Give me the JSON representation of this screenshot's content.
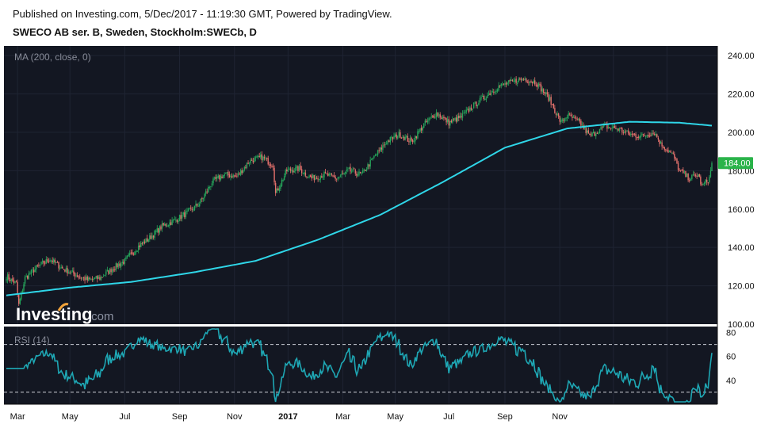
{
  "header": {
    "published": "Published on Investing.com, 5/Dec/2017 - 11:19:30 GMT, Powered by TradingView.",
    "symbol": "SWECO AB ser. B, Sweden, Stockholm:SWECb, D"
  },
  "watermark": {
    "brand": "Investing",
    "suffix": ".com"
  },
  "colors": {
    "background": "#131722",
    "grid": "#1f2433",
    "up": "#26a65b",
    "down": "#e5716c",
    "ma": "#2fd6e8",
    "rsi": "#1ea7b4",
    "price_tag": "#2ab34a"
  },
  "chart_data": [
    {
      "type": "candlestick",
      "title": "SWECO AB ser. B, Sweden, Stockholm:SWECb, D",
      "indicator_label": "MA (200, close, 0)",
      "ylim": [
        100,
        245
      ],
      "y_ticks": [
        "100.00",
        "120.00",
        "140.00",
        "160.00",
        "180.00",
        "200.00",
        "220.00",
        "240.00"
      ],
      "x_ticks": [
        "Mar",
        "May",
        "Jul",
        "Sep",
        "Nov",
        "2017",
        "Mar",
        "May",
        "Jul",
        "Sep",
        "Nov"
      ],
      "last_price": "184.00",
      "close_anchors": [
        [
          0,
          125
        ],
        [
          8,
          121
        ],
        [
          10,
          110
        ],
        [
          15,
          124
        ],
        [
          25,
          130
        ],
        [
          35,
          134
        ],
        [
          45,
          129
        ],
        [
          55,
          126
        ],
        [
          65,
          123
        ],
        [
          75,
          124
        ],
        [
          85,
          129
        ],
        [
          95,
          133
        ],
        [
          105,
          140
        ],
        [
          115,
          145
        ],
        [
          125,
          151
        ],
        [
          135,
          154
        ],
        [
          145,
          158
        ],
        [
          155,
          163
        ],
        [
          165,
          174
        ],
        [
          175,
          178
        ],
        [
          185,
          177
        ],
        [
          195,
          185
        ],
        [
          205,
          187
        ],
        [
          214,
          183
        ],
        [
          216,
          168
        ],
        [
          225,
          180
        ],
        [
          235,
          181
        ],
        [
          245,
          176
        ],
        [
          255,
          178
        ],
        [
          265,
          176
        ],
        [
          275,
          180
        ],
        [
          285,
          178
        ],
        [
          295,
          187
        ],
        [
          305,
          195
        ],
        [
          315,
          199
        ],
        [
          325,
          195
        ],
        [
          335,
          204
        ],
        [
          345,
          210
        ],
        [
          355,
          205
        ],
        [
          365,
          208
        ],
        [
          375,
          214
        ],
        [
          385,
          219
        ],
        [
          395,
          224
        ],
        [
          405,
          226
        ],
        [
          415,
          228
        ],
        [
          425,
          226
        ],
        [
          435,
          218
        ],
        [
          445,
          205
        ],
        [
          450,
          209
        ],
        [
          460,
          205
        ],
        [
          468,
          198
        ],
        [
          480,
          203
        ],
        [
          490,
          202
        ],
        [
          500,
          199
        ],
        [
          510,
          198
        ],
        [
          520,
          200
        ],
        [
          525,
          194
        ],
        [
          535,
          188
        ],
        [
          540,
          180
        ],
        [
          548,
          176
        ],
        [
          555,
          178
        ],
        [
          558,
          172
        ],
        [
          564,
          176
        ],
        [
          566,
          184
        ]
      ],
      "ma200_anchors": [
        [
          0,
          115
        ],
        [
          50,
          119
        ],
        [
          100,
          122
        ],
        [
          150,
          127
        ],
        [
          200,
          133
        ],
        [
          250,
          144
        ],
        [
          300,
          157
        ],
        [
          350,
          174
        ],
        [
          400,
          192
        ],
        [
          450,
          202
        ],
        [
          500,
          205.5
        ],
        [
          540,
          205
        ],
        [
          566,
          203.5
        ]
      ],
      "sessions": 567,
      "first_session": "2015-12-21"
    },
    {
      "type": "line",
      "indicator_label": "RSI (14)",
      "ylim": [
        20,
        85
      ],
      "y_ticks": [
        "40",
        "60",
        "80"
      ],
      "levels": [
        30,
        70
      ]
    }
  ]
}
